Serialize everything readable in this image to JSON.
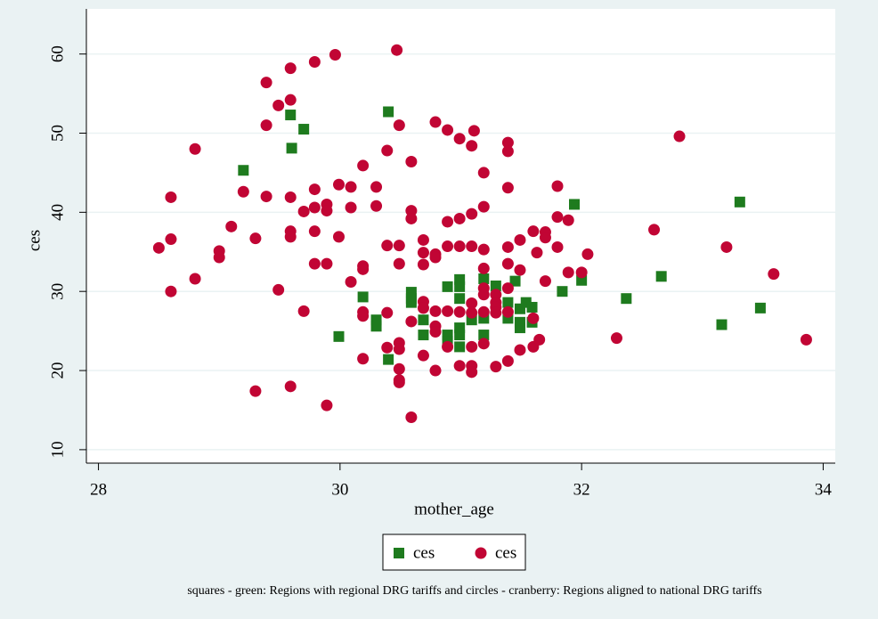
{
  "chart_data": {
    "type": "scatter",
    "x_label": "mother_age",
    "y_label": "ces",
    "xlim": [
      27.9,
      34.1
    ],
    "ylim": [
      8.3,
      65.7
    ],
    "xticks": [
      28,
      30,
      32,
      34
    ],
    "yticks": [
      10,
      20,
      30,
      40,
      50,
      60
    ],
    "grid": true,
    "legend": "bottom",
    "note": "squares - green: Regions with regional DRG tariffs and circles - cranberry: Regions aligned to national DRG tariffs",
    "series": [
      {
        "name": "ces",
        "color": "#1e7b1e",
        "marker": "square",
        "x": [
          29.2,
          29.59,
          29.7,
          29.6,
          30.4,
          29.99,
          30.19,
          30.3,
          30.3,
          30.4,
          30.59,
          30.59,
          30.59,
          30.69,
          30.69,
          30.89,
          30.89,
          30.89,
          30.99,
          30.99,
          30.99,
          30.99,
          30.99,
          30.99,
          31.09,
          31.19,
          31.19,
          31.19,
          31.29,
          31.39,
          31.39,
          31.45,
          31.49,
          31.49,
          31.49,
          31.54,
          31.59,
          31.59,
          31.84,
          31.94,
          32.0,
          32.37,
          32.66,
          33.16,
          33.31,
          33.48
        ],
        "values": [
          45.3,
          52.3,
          50.5,
          48.1,
          52.7,
          24.3,
          29.3,
          26.4,
          25.6,
          21.4,
          29.9,
          29.1,
          28.6,
          26.4,
          24.5,
          30.6,
          24.5,
          23.7,
          31.5,
          30.6,
          29.1,
          25.4,
          24.5,
          23.0,
          26.4,
          31.6,
          26.6,
          24.5,
          30.7,
          28.6,
          26.6,
          31.3,
          27.8,
          26.1,
          25.4,
          28.6,
          28.0,
          26.1,
          30.0,
          41.0,
          31.4,
          29.1,
          31.9,
          25.8,
          41.3,
          27.9
        ]
      },
      {
        "name": "ces",
        "color": "#c10534",
        "marker": "circle",
        "x": [
          28.5,
          28.6,
          28.6,
          28.6,
          28.8,
          28.8,
          29.0,
          29.0,
          29.1,
          29.2,
          29.3,
          29.3,
          29.39,
          29.39,
          29.39,
          29.49,
          29.49,
          29.59,
          29.59,
          29.59,
          29.59,
          29.59,
          29.59,
          29.7,
          29.7,
          29.79,
          29.79,
          29.79,
          29.79,
          29.79,
          29.89,
          29.89,
          29.89,
          29.89,
          29.96,
          29.99,
          29.99,
          30.09,
          30.09,
          30.09,
          30.19,
          30.19,
          30.19,
          30.19,
          30.19,
          30.19,
          30.3,
          30.3,
          30.39,
          30.39,
          30.39,
          30.39,
          30.47,
          30.49,
          30.49,
          30.49,
          30.49,
          30.49,
          30.49,
          30.49,
          30.49,
          30.59,
          30.59,
          30.59,
          30.59,
          30.59,
          30.69,
          30.69,
          30.69,
          30.69,
          30.69,
          30.69,
          30.79,
          30.79,
          30.79,
          30.79,
          30.79,
          30.79,
          30.79,
          30.89,
          30.89,
          30.89,
          30.89,
          30.89,
          30.99,
          30.99,
          30.99,
          30.99,
          30.99,
          31.09,
          31.09,
          31.09,
          31.09,
          31.09,
          31.09,
          31.09,
          31.09,
          31.11,
          31.19,
          31.19,
          31.19,
          31.19,
          31.19,
          31.19,
          31.19,
          31.19,
          31.29,
          31.29,
          31.29,
          31.29,
          31.29,
          31.39,
          31.39,
          31.39,
          31.39,
          31.39,
          31.39,
          31.39,
          31.39,
          31.49,
          31.49,
          31.49,
          31.6,
          31.6,
          31.6,
          31.63,
          31.65,
          31.7,
          31.7,
          31.7,
          31.8,
          31.8,
          31.8,
          31.89,
          31.89,
          32.0,
          32.05,
          32.29,
          32.6,
          32.81,
          33.2,
          33.59,
          33.86
        ],
        "values": [
          35.5,
          41.9,
          36.6,
          30.0,
          48.0,
          31.6,
          35.1,
          34.3,
          38.2,
          42.6,
          36.7,
          17.4,
          56.4,
          51.0,
          42.0,
          53.5,
          30.2,
          58.2,
          54.2,
          41.9,
          37.6,
          36.9,
          18.0,
          40.1,
          27.5,
          59.0,
          42.9,
          40.6,
          37.6,
          33.5,
          41.0,
          40.2,
          33.5,
          15.6,
          59.9,
          43.5,
          36.9,
          43.2,
          40.6,
          31.2,
          45.9,
          33.2,
          32.8,
          27.4,
          26.9,
          21.5,
          43.2,
          40.8,
          47.8,
          35.8,
          27.3,
          22.9,
          60.5,
          51.0,
          35.8,
          33.5,
          23.5,
          22.7,
          20.2,
          18.8,
          18.5,
          46.4,
          40.2,
          39.2,
          26.2,
          14.1,
          36.5,
          34.9,
          33.4,
          28.7,
          27.9,
          21.9,
          51.4,
          34.7,
          34.3,
          27.5,
          25.6,
          24.9,
          20.0,
          50.4,
          38.8,
          35.7,
          27.5,
          23.0,
          49.3,
          39.2,
          35.7,
          27.4,
          20.6,
          48.4,
          39.8,
          35.7,
          28.5,
          27.3,
          23.0,
          20.6,
          19.8,
          50.3,
          45.0,
          40.7,
          35.3,
          32.9,
          30.4,
          29.6,
          27.4,
          23.4,
          29.6,
          28.6,
          28.0,
          27.3,
          20.5,
          48.8,
          47.7,
          43.1,
          35.6,
          33.5,
          30.4,
          27.4,
          21.2,
          36.5,
          32.7,
          22.6,
          37.6,
          26.6,
          23.0,
          34.9,
          23.9,
          31.3,
          37.5,
          36.8,
          43.3,
          39.4,
          35.6,
          39.0,
          32.4,
          32.4,
          34.7,
          24.1,
          37.8,
          49.6,
          35.6,
          32.2,
          23.9
        ]
      }
    ]
  }
}
